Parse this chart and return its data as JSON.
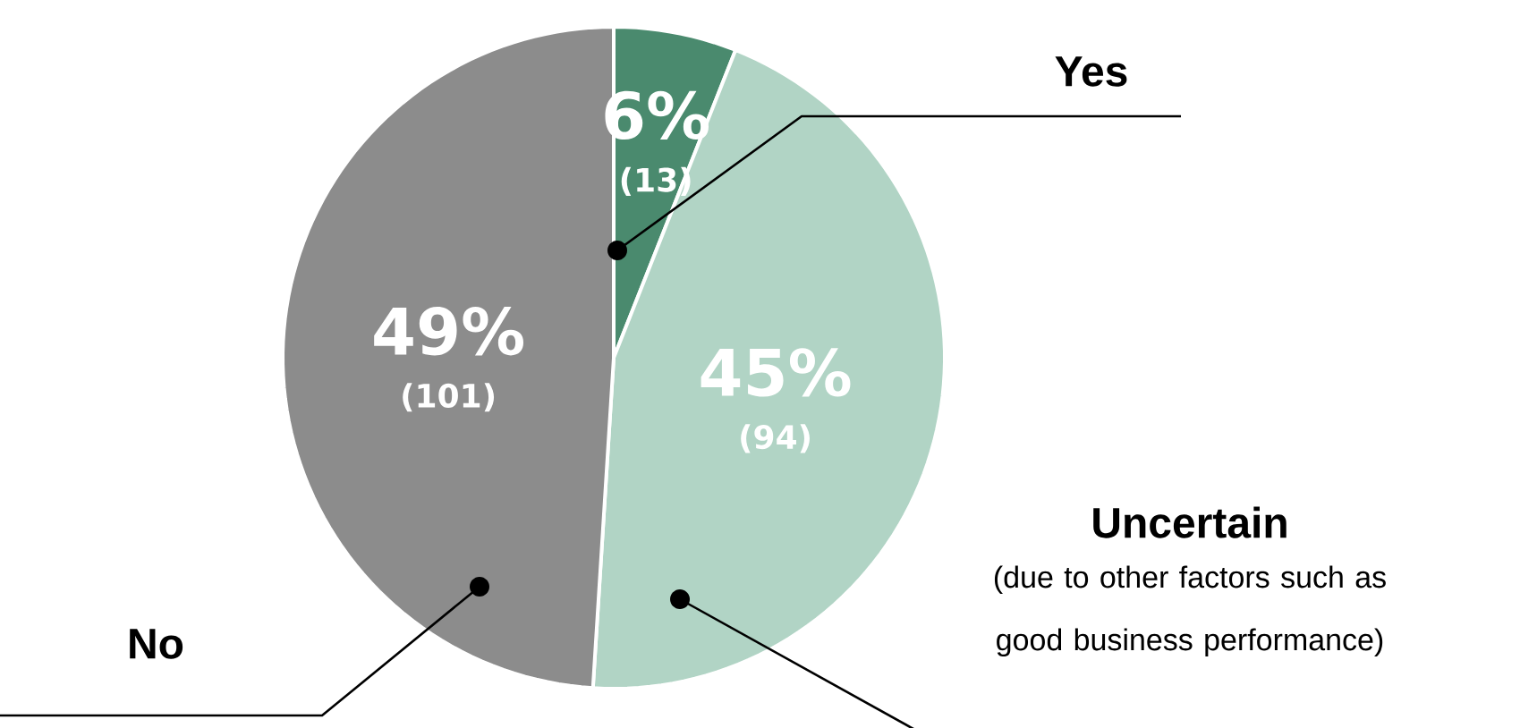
{
  "chart_data": {
    "type": "pie",
    "categories": [
      "Yes",
      "Uncertain",
      "No"
    ],
    "values": [
      6,
      45,
      49
    ],
    "colors": [
      "#4a8a6e",
      "#b1d4c5",
      "#8c8c8c"
    ],
    "value_labels": [
      "6%",
      "45%",
      "49%"
    ],
    "annotations": [
      "(13)",
      "(94)",
      "(101)",
      "(due to other factors such as good business performance)"
    ]
  }
}
